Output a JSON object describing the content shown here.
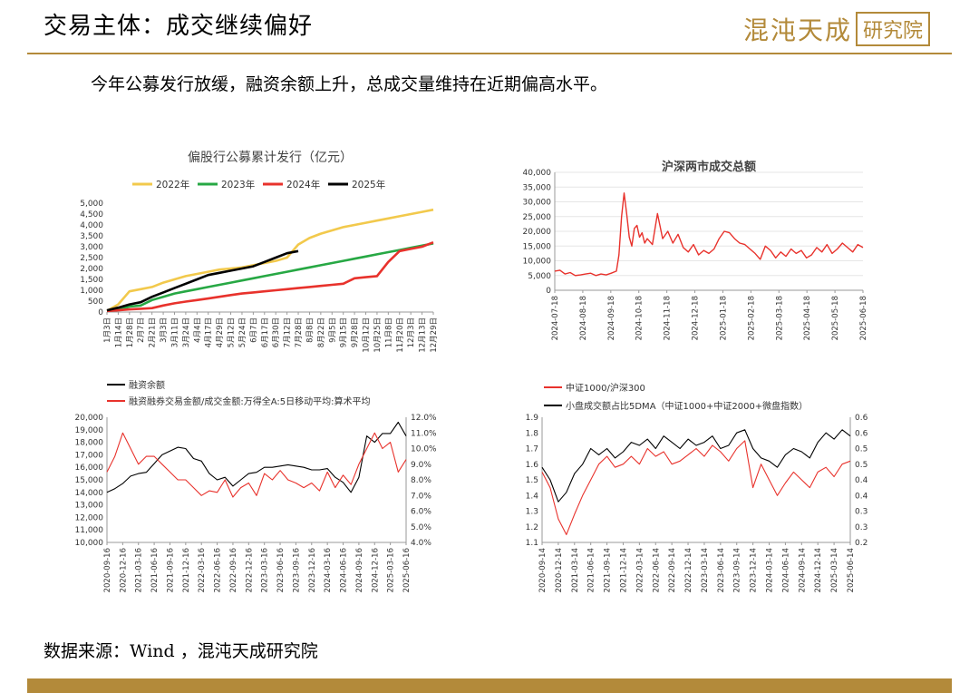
{
  "header": {
    "title": "交易主体：成交继续偏好",
    "logo_text": "混沌天成",
    "logo_box": "研究院"
  },
  "subtitle": "今年公募发行放缓，融资余额上升，总成交量维持在近期偏高水平。",
  "source": "数据来源：Wind ，混沌天成研究院",
  "colors": {
    "gold": "#b38a3a",
    "y2022": "#f2c94c",
    "y2023": "#27a844",
    "y2024": "#e8322c",
    "y2025": "#000000",
    "red": "#e8322c",
    "black": "#000000"
  },
  "chart_data": [
    {
      "type": "line",
      "title": "偏股行公募累计发行（亿元）",
      "x_ticks": [
        "1月3日",
        "1月14日",
        "1月28日",
        "2月7日",
        "2月21日",
        "3月3日",
        "3月11日",
        "3月24日",
        "4月4日",
        "4月17日",
        "4月29日",
        "5月12日",
        "5月24日",
        "6月7日",
        "6月17日",
        "6月30日",
        "7月12日",
        "7月28日",
        "8月8日",
        "8月22日",
        "9月5日",
        "9月15日",
        "9月28日",
        "10月12日",
        "10月25日",
        "11月8日",
        "11月20日",
        "12月3日",
        "12月13日",
        "12月29日"
      ],
      "ylim": [
        0,
        5000
      ],
      "y_ticks": [
        "0",
        "500",
        "1,000",
        "1,500",
        "2,000",
        "2,500",
        "3,000",
        "3,500",
        "4,000",
        "4,500",
        "5,000"
      ],
      "x_range": [
        0,
        29
      ],
      "series": [
        {
          "name": "2022年",
          "x": [
            0,
            1,
            2,
            3,
            4,
            5,
            6,
            7,
            8,
            9,
            10,
            11,
            12,
            13,
            14,
            15,
            16,
            17,
            18,
            19,
            20,
            21,
            22,
            23,
            24,
            25,
            26,
            27,
            28,
            29
          ],
          "values": [
            50,
            350,
            950,
            1050,
            1150,
            1350,
            1500,
            1650,
            1750,
            1850,
            1950,
            2000,
            2050,
            2150,
            2250,
            2350,
            2500,
            3100,
            3400,
            3600,
            3750,
            3900,
            4000,
            4100,
            4200,
            4300,
            4400,
            4500,
            4600,
            4700
          ]
        },
        {
          "name": "2023年",
          "x": [
            0,
            1,
            2,
            3,
            4,
            5,
            6,
            7,
            8,
            9,
            10,
            11,
            12,
            13,
            14,
            15,
            16,
            17,
            18,
            19,
            20,
            21,
            22,
            23,
            24,
            25,
            26,
            27,
            28,
            29
          ],
          "values": [
            50,
            100,
            250,
            300,
            550,
            700,
            850,
            950,
            1050,
            1150,
            1250,
            1350,
            1450,
            1550,
            1650,
            1750,
            1850,
            1950,
            2050,
            2150,
            2250,
            2350,
            2450,
            2550,
            2650,
            2750,
            2850,
            2950,
            3050,
            3150
          ]
        },
        {
          "name": "2024年",
          "x": [
            0,
            1,
            2,
            3,
            4,
            5,
            6,
            7,
            8,
            9,
            10,
            11,
            12,
            13,
            14,
            15,
            16,
            17,
            18,
            19,
            20,
            21,
            22,
            23,
            24,
            25,
            26,
            27,
            28,
            29
          ],
          "values": [
            50,
            80,
            120,
            150,
            180,
            300,
            400,
            480,
            550,
            620,
            700,
            780,
            850,
            900,
            950,
            1000,
            1050,
            1100,
            1150,
            1200,
            1250,
            1300,
            1550,
            1600,
            1650,
            2300,
            2800,
            2900,
            3000,
            3200
          ]
        },
        {
          "name": "2025年",
          "x": [
            0,
            1,
            2,
            3,
            4,
            5,
            6,
            7,
            8,
            9,
            10,
            11,
            12,
            13,
            14,
            15,
            16,
            17
          ],
          "values": [
            80,
            200,
            350,
            450,
            700,
            900,
            1100,
            1300,
            1500,
            1700,
            1800,
            1900,
            2000,
            2100,
            2300,
            2500,
            2700,
            2800
          ]
        }
      ]
    },
    {
      "type": "line",
      "title": "沪深两市成交总额",
      "x_ticks": [
        "2024-07-18",
        "2024-08-18",
        "2024-09-18",
        "2024-10-18",
        "2024-11-18",
        "2024-12-18",
        "2025-01-18",
        "2025-02-18",
        "2025-03-18",
        "2025-04-18",
        "2025-05-18",
        "2025-06-18"
      ],
      "ylim": [
        0,
        40000
      ],
      "y_ticks": [
        "0",
        "5,000",
        "10,000",
        "15,000",
        "20,000",
        "25,000",
        "30,000",
        "35,000",
        "40,000"
      ],
      "x_range": [
        0,
        12
      ],
      "series": [
        {
          "name": "",
          "x": [
            0,
            0.2,
            0.4,
            0.6,
            0.8,
            1,
            1.2,
            1.4,
            1.6,
            1.8,
            2,
            2.2,
            2.4,
            2.5,
            2.6,
            2.7,
            2.8,
            2.9,
            3,
            3.1,
            3.2,
            3.3,
            3.4,
            3.5,
            3.6,
            3.8,
            4,
            4.2,
            4.4,
            4.6,
            4.8,
            5,
            5.2,
            5.4,
            5.6,
            5.8,
            6,
            6.2,
            6.4,
            6.6,
            6.8,
            7,
            7.2,
            7.4,
            7.6,
            7.8,
            8,
            8.2,
            8.4,
            8.6,
            8.8,
            9,
            9.2,
            9.4,
            9.6,
            9.8,
            10,
            10.2,
            10.4,
            10.6,
            10.8,
            11,
            11.2,
            11.4,
            11.6,
            11.8,
            12
          ],
          "values": [
            6500,
            6800,
            5500,
            6000,
            5000,
            5200,
            5500,
            5800,
            5000,
            5500,
            5200,
            5800,
            6500,
            12000,
            25000,
            33000,
            26000,
            18000,
            15000,
            21000,
            22000,
            18000,
            19500,
            16000,
            17500,
            15500,
            26000,
            17500,
            20000,
            16000,
            19000,
            14500,
            13000,
            15500,
            12000,
            13500,
            12500,
            14000,
            17500,
            20000,
            19500,
            17500,
            16000,
            15500,
            14000,
            12500,
            10500,
            15000,
            13500,
            11000,
            13000,
            11500,
            14000,
            12500,
            13500,
            11000,
            12000,
            14500,
            13000,
            15500,
            12500,
            14000,
            16000,
            14500,
            13000,
            15500,
            14500
          ]
        }
      ]
    },
    {
      "type": "line",
      "legend": [
        "融资余额",
        "融资融券交易金额/成交金额:万得全A:5日移动平均:算术平均"
      ],
      "x_ticks": [
        "2020-09-16",
        "2020-12-16",
        "2021-03-16",
        "2021-06-16",
        "2021-09-16",
        "2021-12-16",
        "2022-03-16",
        "2022-06-16",
        "2022-09-16",
        "2022-12-16",
        "2023-03-16",
        "2023-06-16",
        "2023-09-16",
        "2023-12-16",
        "2024-03-16",
        "2024-06-16",
        "2024-09-16",
        "2024-12-16",
        "2025-03-16",
        "2025-06-16"
      ],
      "ylim": [
        10000,
        20000
      ],
      "y_ticks": [
        "10,000",
        "11,000",
        "12,000",
        "13,000",
        "14,000",
        "15,000",
        "16,000",
        "17,000",
        "18,000",
        "19,000",
        "20,000"
      ],
      "y2lim": [
        4,
        12
      ],
      "y2_ticks": [
        "4.0%",
        "5.0%",
        "6.0%",
        "7.0%",
        "8.0%",
        "9.0%",
        "10.0%",
        "11.0%",
        "12.0%"
      ],
      "x_range": [
        0,
        19
      ],
      "series": [
        {
          "name": "融资余额",
          "axis": "left",
          "x": [
            0,
            0.5,
            1,
            1.5,
            2,
            2.5,
            3,
            3.5,
            4,
            4.5,
            5,
            5.5,
            6,
            6.5,
            7,
            7.5,
            8,
            8.5,
            9,
            9.5,
            10,
            10.5,
            11,
            11.5,
            12,
            12.5,
            13,
            13.5,
            14,
            14.5,
            15,
            15.5,
            16,
            16.5,
            17,
            17.5,
            18,
            18.5,
            19
          ],
          "values": [
            14000,
            14300,
            14700,
            15300,
            15500,
            15600,
            16300,
            17000,
            17300,
            17600,
            17500,
            16700,
            16500,
            15500,
            15000,
            15200,
            14500,
            15000,
            15500,
            15600,
            16000,
            16000,
            16100,
            16200,
            16100,
            16000,
            15800,
            15800,
            15900,
            15200,
            14800,
            14000,
            15200,
            18500,
            18000,
            18700,
            18700,
            19600,
            18500
          ]
        },
        {
          "name": "融资融券交易金额/成交金额:万得全A:5日移动平均:算术平均",
          "axis": "right",
          "x": [
            0,
            0.5,
            1,
            1.5,
            2,
            2.5,
            3,
            3.5,
            4,
            4.5,
            5,
            5.5,
            6,
            6.5,
            7,
            7.5,
            8,
            8.5,
            9,
            9.5,
            10,
            10.5,
            11,
            11.5,
            12,
            12.5,
            13,
            13.5,
            14,
            14.5,
            15,
            15.5,
            16,
            16.5,
            17,
            17.5,
            18,
            18.5,
            19
          ],
          "values": [
            8.5,
            9.5,
            11,
            10,
            9,
            9.5,
            9.5,
            9,
            8.5,
            8,
            8,
            7.5,
            7,
            7.3,
            7.2,
            8,
            6.9,
            7.5,
            7.8,
            7,
            8.4,
            8,
            8.6,
            8,
            7.8,
            7.5,
            7.8,
            7.3,
            8.5,
            7.5,
            8.3,
            7.7,
            9,
            10,
            11,
            10,
            10.4,
            8.5,
            9.3
          ]
        }
      ]
    },
    {
      "type": "line",
      "legend": [
        "中证1000/沪深300",
        "小盘成交额占比5DMA（中证1000+中证2000+微盘指数）"
      ],
      "x_ticks": [
        "2020-09-14",
        "2020-12-14",
        "2021-03-14",
        "2021-06-14",
        "2021-09-14",
        "2021-12-14",
        "2022-03-14",
        "2022-06-14",
        "2022-09-14",
        "2022-12-14",
        "2023-03-14",
        "2023-06-14",
        "2023-09-14",
        "2023-12-14",
        "2024-03-14",
        "2024-06-14",
        "2024-09-14",
        "2024-12-14",
        "2025-03-14",
        "2025-06-14"
      ],
      "ylim": [
        1.1,
        1.9
      ],
      "y_ticks": [
        "1.1",
        "1.2",
        "1.3",
        "1.4",
        "1.5",
        "1.6",
        "1.7",
        "1.8",
        "1.9"
      ],
      "y2lim": [
        0.2,
        0.6
      ],
      "y2_ticks": [
        "0.2",
        "0.3",
        "0.3",
        "0.4",
        "0.4",
        "0.5",
        "0.5",
        "0.6",
        "0.6"
      ],
      "x_range": [
        0,
        19
      ],
      "series": [
        {
          "name": "中证1000/沪深300",
          "axis": "left",
          "x": [
            0,
            0.5,
            1,
            1.5,
            2,
            2.5,
            3,
            3.5,
            4,
            4.5,
            5,
            5.5,
            6,
            6.5,
            7,
            7.5,
            8,
            8.5,
            9,
            9.5,
            10,
            10.5,
            11,
            11.5,
            12,
            12.5,
            13,
            13.5,
            14,
            14.5,
            15,
            15.5,
            16,
            16.5,
            17,
            17.5,
            18,
            18.5,
            19
          ],
          "values": [
            1.55,
            1.45,
            1.25,
            1.15,
            1.28,
            1.4,
            1.5,
            1.6,
            1.65,
            1.58,
            1.6,
            1.65,
            1.6,
            1.7,
            1.65,
            1.68,
            1.6,
            1.62,
            1.66,
            1.7,
            1.65,
            1.72,
            1.68,
            1.62,
            1.7,
            1.75,
            1.45,
            1.6,
            1.5,
            1.4,
            1.48,
            1.55,
            1.5,
            1.45,
            1.55,
            1.58,
            1.52,
            1.6,
            1.62
          ]
        },
        {
          "name": "小盘成交额占比5DMA（中证1000+中证2000+微盘指数）",
          "axis": "right",
          "x": [
            0,
            0.5,
            1,
            1.5,
            2,
            2.5,
            3,
            3.5,
            4,
            4.5,
            5,
            5.5,
            6,
            6.5,
            7,
            7.5,
            8,
            8.5,
            9,
            9.5,
            10,
            10.5,
            11,
            11.5,
            12,
            12.5,
            13,
            13.5,
            14,
            14.5,
            15,
            15.5,
            16,
            16.5,
            17,
            17.5,
            18,
            18.5,
            19
          ],
          "values": [
            0.44,
            0.4,
            0.33,
            0.36,
            0.42,
            0.45,
            0.5,
            0.48,
            0.5,
            0.47,
            0.49,
            0.52,
            0.51,
            0.53,
            0.5,
            0.54,
            0.52,
            0.5,
            0.53,
            0.51,
            0.52,
            0.54,
            0.5,
            0.51,
            0.55,
            0.56,
            0.5,
            0.47,
            0.46,
            0.44,
            0.48,
            0.5,
            0.49,
            0.47,
            0.52,
            0.55,
            0.53,
            0.56,
            0.54
          ]
        }
      ]
    }
  ]
}
